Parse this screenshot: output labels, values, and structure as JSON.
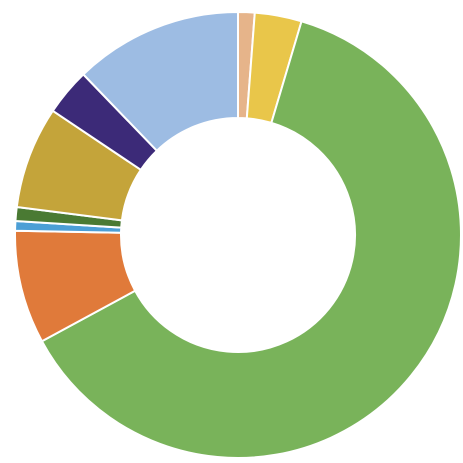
{
  "chart_data": {
    "type": "pie",
    "donut": true,
    "title": "",
    "slices": [
      {
        "value": 1.2,
        "color": "#e6b48a"
      },
      {
        "value": 3.4,
        "color": "#e9c64a"
      },
      {
        "value": 62.5,
        "color": "#79b35a"
      },
      {
        "value": 8.2,
        "color": "#e07a3a"
      },
      {
        "value": 0.7,
        "color": "#4c9fd6"
      },
      {
        "value": 1.0,
        "color": "#4a7a33"
      },
      {
        "value": 7.4,
        "color": "#c4a43a"
      },
      {
        "value": 3.4,
        "color": "#3c2a78"
      },
      {
        "value": 12.2,
        "color": "#9dbce3"
      }
    ],
    "start_angle_deg": 0,
    "direction": "clockwise",
    "legend": "none",
    "data_labels": "none"
  }
}
